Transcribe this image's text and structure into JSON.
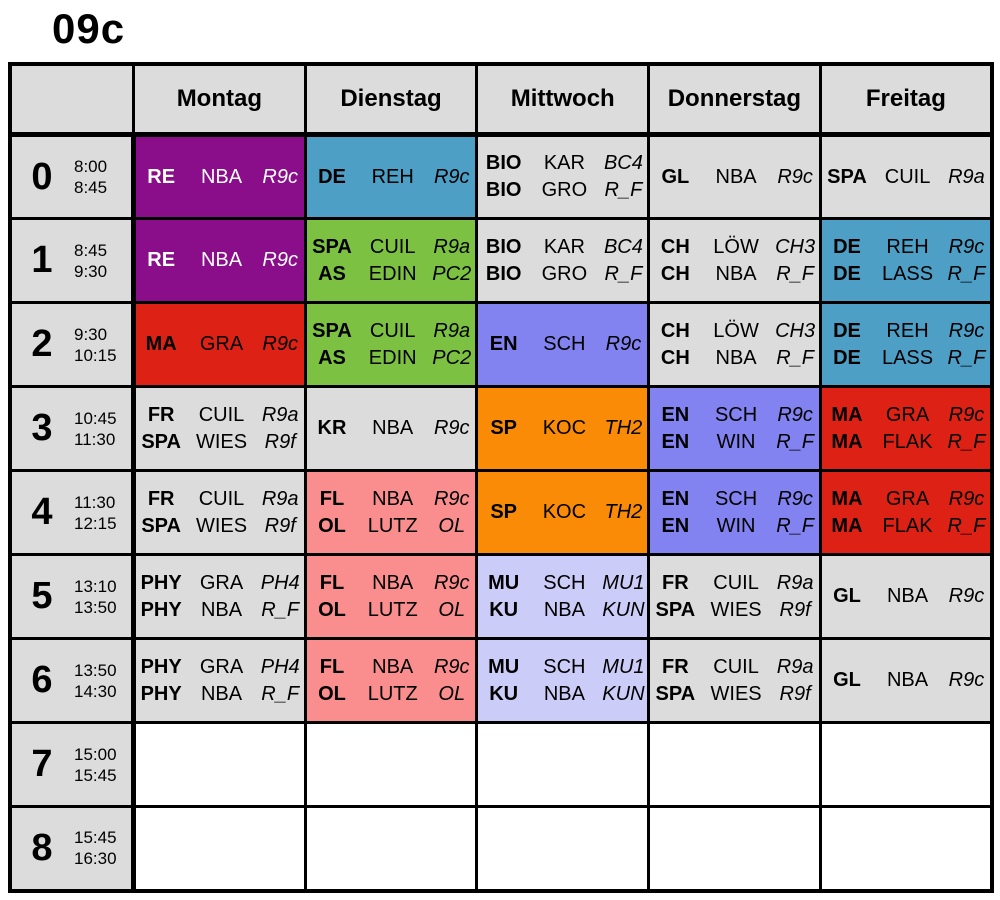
{
  "title": "09c",
  "days": [
    "Montag",
    "Dienstag",
    "Mittwoch",
    "Donnerstag",
    "Freitag"
  ],
  "periods": [
    {
      "num": "0",
      "start": "8:00",
      "end": "8:45"
    },
    {
      "num": "1",
      "start": "8:45",
      "end": "9:30"
    },
    {
      "num": "2",
      "start": "9:30",
      "end": "10:15"
    },
    {
      "num": "3",
      "start": "10:45",
      "end": "11:30"
    },
    {
      "num": "4",
      "start": "11:30",
      "end": "12:15"
    },
    {
      "num": "5",
      "start": "13:10",
      "end": "13:50"
    },
    {
      "num": "6",
      "start": "13:50",
      "end": "14:30"
    },
    {
      "num": "7",
      "start": "15:00",
      "end": "15:45"
    },
    {
      "num": "8",
      "start": "15:45",
      "end": "16:30"
    }
  ],
  "colors": {
    "gray": "#dcdcdc",
    "white": "#ffffff",
    "purple": "#8a0e8a",
    "blue": "#4d9fc6",
    "green": "#7cc142",
    "red": "#dd2114",
    "violet": "#8282f0",
    "orange": "#f98b06",
    "salmon": "#fa8e8e",
    "lavender": "#ccccf8",
    "border": "#000000",
    "text": "#000000",
    "purple_text": "#ffffff"
  },
  "cells": [
    [
      {
        "bg": "purple",
        "fg": "purple_text",
        "lines": [
          [
            "RE",
            "NBA",
            "R9c"
          ]
        ]
      },
      {
        "bg": "blue",
        "fg": "text",
        "lines": [
          [
            "DE",
            "REH",
            "R9c"
          ]
        ]
      },
      {
        "bg": "gray",
        "fg": "text",
        "lines": [
          [
            "BIO",
            "KAR",
            "BC4"
          ],
          [
            "BIO",
            "GRO",
            "R_F"
          ]
        ]
      },
      {
        "bg": "gray",
        "fg": "text",
        "lines": [
          [
            "GL",
            "NBA",
            "R9c"
          ]
        ]
      },
      {
        "bg": "gray",
        "fg": "text",
        "lines": [
          [
            "SPA",
            "CUIL",
            "R9a"
          ]
        ]
      }
    ],
    [
      {
        "bg": "purple",
        "fg": "purple_text",
        "lines": [
          [
            "RE",
            "NBA",
            "R9c"
          ]
        ]
      },
      {
        "bg": "green",
        "fg": "text",
        "lines": [
          [
            "SPA",
            "CUIL",
            "R9a"
          ],
          [
            "AS",
            "EDIN",
            "PC2"
          ]
        ]
      },
      {
        "bg": "gray",
        "fg": "text",
        "lines": [
          [
            "BIO",
            "KAR",
            "BC4"
          ],
          [
            "BIO",
            "GRO",
            "R_F"
          ]
        ]
      },
      {
        "bg": "gray",
        "fg": "text",
        "lines": [
          [
            "CH",
            "LÖW",
            "CH3"
          ],
          [
            "CH",
            "NBA",
            "R_F"
          ]
        ]
      },
      {
        "bg": "blue",
        "fg": "text",
        "lines": [
          [
            "DE",
            "REH",
            "R9c"
          ],
          [
            "DE",
            "LASS",
            "R_F"
          ]
        ]
      }
    ],
    [
      {
        "bg": "red",
        "fg": "text",
        "lines": [
          [
            "MA",
            "GRA",
            "R9c"
          ]
        ]
      },
      {
        "bg": "green",
        "fg": "text",
        "lines": [
          [
            "SPA",
            "CUIL",
            "R9a"
          ],
          [
            "AS",
            "EDIN",
            "PC2"
          ]
        ]
      },
      {
        "bg": "violet",
        "fg": "text",
        "lines": [
          [
            "EN",
            "SCH",
            "R9c"
          ]
        ]
      },
      {
        "bg": "gray",
        "fg": "text",
        "lines": [
          [
            "CH",
            "LÖW",
            "CH3"
          ],
          [
            "CH",
            "NBA",
            "R_F"
          ]
        ]
      },
      {
        "bg": "blue",
        "fg": "text",
        "lines": [
          [
            "DE",
            "REH",
            "R9c"
          ],
          [
            "DE",
            "LASS",
            "R_F"
          ]
        ]
      }
    ],
    [
      {
        "bg": "gray",
        "fg": "text",
        "lines": [
          [
            "FR",
            "CUIL",
            "R9a"
          ],
          [
            "SPA",
            "WIES",
            "R9f"
          ]
        ]
      },
      {
        "bg": "gray",
        "fg": "text",
        "lines": [
          [
            "KR",
            "NBA",
            "R9c"
          ]
        ]
      },
      {
        "bg": "orange",
        "fg": "text",
        "lines": [
          [
            "SP",
            "KOC",
            "TH2"
          ]
        ]
      },
      {
        "bg": "violet",
        "fg": "text",
        "lines": [
          [
            "EN",
            "SCH",
            "R9c"
          ],
          [
            "EN",
            "WIN",
            "R_F"
          ]
        ]
      },
      {
        "bg": "red",
        "fg": "text",
        "lines": [
          [
            "MA",
            "GRA",
            "R9c"
          ],
          [
            "MA",
            "FLAK",
            "R_F"
          ]
        ]
      }
    ],
    [
      {
        "bg": "gray",
        "fg": "text",
        "lines": [
          [
            "FR",
            "CUIL",
            "R9a"
          ],
          [
            "SPA",
            "WIES",
            "R9f"
          ]
        ]
      },
      {
        "bg": "salmon",
        "fg": "text",
        "lines": [
          [
            "FL",
            "NBA",
            "R9c"
          ],
          [
            "OL",
            "LUTZ",
            "OL"
          ]
        ]
      },
      {
        "bg": "orange",
        "fg": "text",
        "lines": [
          [
            "SP",
            "KOC",
            "TH2"
          ]
        ]
      },
      {
        "bg": "violet",
        "fg": "text",
        "lines": [
          [
            "EN",
            "SCH",
            "R9c"
          ],
          [
            "EN",
            "WIN",
            "R_F"
          ]
        ]
      },
      {
        "bg": "red",
        "fg": "text",
        "lines": [
          [
            "MA",
            "GRA",
            "R9c"
          ],
          [
            "MA",
            "FLAK",
            "R_F"
          ]
        ]
      }
    ],
    [
      {
        "bg": "gray",
        "fg": "text",
        "lines": [
          [
            "PHY",
            "GRA",
            "PH4"
          ],
          [
            "PHY",
            "NBA",
            "R_F"
          ]
        ]
      },
      {
        "bg": "salmon",
        "fg": "text",
        "lines": [
          [
            "FL",
            "NBA",
            "R9c"
          ],
          [
            "OL",
            "LUTZ",
            "OL"
          ]
        ]
      },
      {
        "bg": "lavender",
        "fg": "text",
        "lines": [
          [
            "MU",
            "SCH",
            "MU1"
          ],
          [
            "KU",
            "NBA",
            "KUN"
          ]
        ]
      },
      {
        "bg": "gray",
        "fg": "text",
        "lines": [
          [
            "FR",
            "CUIL",
            "R9a"
          ],
          [
            "SPA",
            "WIES",
            "R9f"
          ]
        ]
      },
      {
        "bg": "gray",
        "fg": "text",
        "lines": [
          [
            "GL",
            "NBA",
            "R9c"
          ]
        ]
      }
    ],
    [
      {
        "bg": "gray",
        "fg": "text",
        "lines": [
          [
            "PHY",
            "GRA",
            "PH4"
          ],
          [
            "PHY",
            "NBA",
            "R_F"
          ]
        ]
      },
      {
        "bg": "salmon",
        "fg": "text",
        "lines": [
          [
            "FL",
            "NBA",
            "R9c"
          ],
          [
            "OL",
            "LUTZ",
            "OL"
          ]
        ]
      },
      {
        "bg": "lavender",
        "fg": "text",
        "lines": [
          [
            "MU",
            "SCH",
            "MU1"
          ],
          [
            "KU",
            "NBA",
            "KUN"
          ]
        ]
      },
      {
        "bg": "gray",
        "fg": "text",
        "lines": [
          [
            "FR",
            "CUIL",
            "R9a"
          ],
          [
            "SPA",
            "WIES",
            "R9f"
          ]
        ]
      },
      {
        "bg": "gray",
        "fg": "text",
        "lines": [
          [
            "GL",
            "NBA",
            "R9c"
          ]
        ]
      }
    ],
    [
      {
        "bg": "white",
        "fg": "text",
        "lines": []
      },
      {
        "bg": "white",
        "fg": "text",
        "lines": []
      },
      {
        "bg": "white",
        "fg": "text",
        "lines": []
      },
      {
        "bg": "white",
        "fg": "text",
        "lines": []
      },
      {
        "bg": "white",
        "fg": "text",
        "lines": []
      }
    ],
    [
      {
        "bg": "white",
        "fg": "text",
        "lines": []
      },
      {
        "bg": "white",
        "fg": "text",
        "lines": []
      },
      {
        "bg": "white",
        "fg": "text",
        "lines": []
      },
      {
        "bg": "white",
        "fg": "text",
        "lines": []
      },
      {
        "bg": "white",
        "fg": "text",
        "lines": []
      }
    ]
  ]
}
